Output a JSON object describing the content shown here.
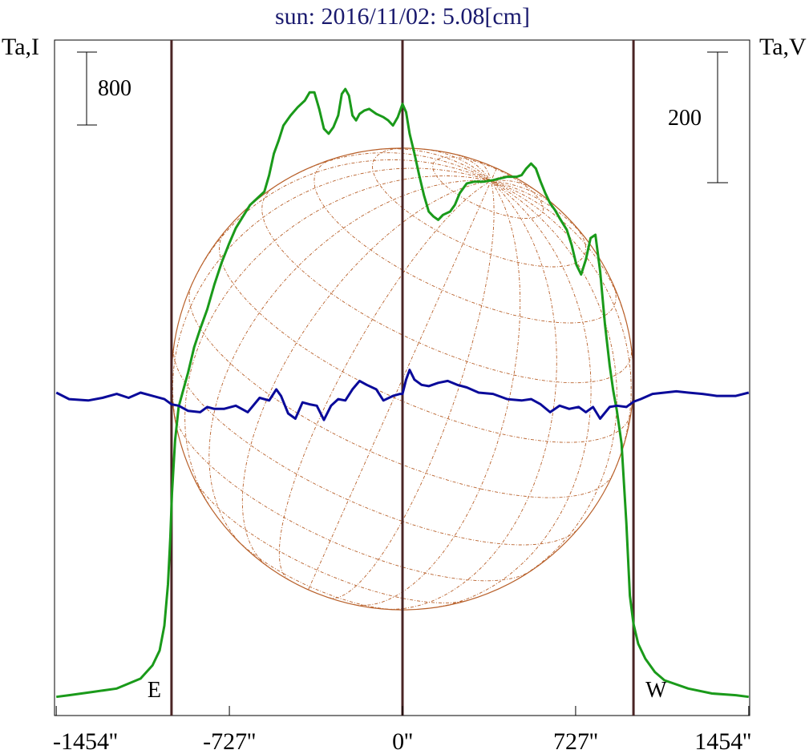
{
  "chart_data": {
    "type": "line",
    "title": "sun: 2016/11/02: 5.08[cm]",
    "left_axis_label": "Ta,I",
    "right_axis_label": "Ta,V",
    "x_unit": "arcsec",
    "xlim": [
      -1454,
      1454
    ],
    "x_ticks": [
      -1454,
      -727,
      0,
      727,
      1454
    ],
    "x_tick_labels": [
      "-1454''",
      "-727''",
      "0''",
      "727''",
      "1454''"
    ],
    "scale_bar_left": {
      "label": "800",
      "value": 800
    },
    "scale_bar_right": {
      "label": "200",
      "value": 200
    },
    "limb_markers": [
      {
        "label": "E",
        "x": -970
      },
      {
        "label": "W",
        "x": 970
      }
    ],
    "center_marker_x": 0,
    "solar_disk_radius": 970,
    "colors": {
      "intensity": "#1a9a1a",
      "polarization": "#0a0a9a",
      "markers": "#4a2424",
      "disk": "#b8602a",
      "title": "#1a1a6e"
    },
    "series": [
      {
        "name": "I",
        "axis": "left",
        "ylim": [
          0,
          3820
        ],
        "points": [
          [
            -1454,
            50
          ],
          [
            -1400,
            60
          ],
          [
            -1300,
            80
          ],
          [
            -1200,
            100
          ],
          [
            -1100,
            160
          ],
          [
            -1050,
            240
          ],
          [
            -1020,
            330
          ],
          [
            -1000,
            480
          ],
          [
            -985,
            730
          ],
          [
            -975,
            1010
          ],
          [
            -968,
            1280
          ],
          [
            -955,
            1600
          ],
          [
            -940,
            1800
          ],
          [
            -925,
            1880
          ],
          [
            -900,
            2010
          ],
          [
            -875,
            2160
          ],
          [
            -850,
            2270
          ],
          [
            -820,
            2390
          ],
          [
            -790,
            2540
          ],
          [
            -760,
            2670
          ],
          [
            -730,
            2780
          ],
          [
            -700,
            2880
          ],
          [
            -670,
            2950
          ],
          [
            -640,
            3020
          ],
          [
            -610,
            3060
          ],
          [
            -580,
            3100
          ],
          [
            -560,
            3200
          ],
          [
            -540,
            3330
          ],
          [
            -520,
            3410
          ],
          [
            -500,
            3500
          ],
          [
            -470,
            3560
          ],
          [
            -440,
            3610
          ],
          [
            -410,
            3650
          ],
          [
            -390,
            3700
          ],
          [
            -370,
            3700
          ],
          [
            -350,
            3600
          ],
          [
            -330,
            3480
          ],
          [
            -310,
            3450
          ],
          [
            -290,
            3490
          ],
          [
            -270,
            3560
          ],
          [
            -255,
            3690
          ],
          [
            -240,
            3720
          ],
          [
            -225,
            3680
          ],
          [
            -210,
            3560
          ],
          [
            -195,
            3530
          ],
          [
            -180,
            3570
          ],
          [
            -160,
            3590
          ],
          [
            -140,
            3600
          ],
          [
            -110,
            3570
          ],
          [
            -80,
            3550
          ],
          [
            -60,
            3530
          ],
          [
            -40,
            3500
          ],
          [
            -20,
            3550
          ],
          [
            0,
            3630
          ],
          [
            15,
            3580
          ],
          [
            30,
            3450
          ],
          [
            50,
            3330
          ],
          [
            70,
            3200
          ],
          [
            90,
            3080
          ],
          [
            110,
            2980
          ],
          [
            130,
            2950
          ],
          [
            150,
            2930
          ],
          [
            170,
            2960
          ],
          [
            200,
            2980
          ],
          [
            220,
            3020
          ],
          [
            240,
            3090
          ],
          [
            270,
            3150
          ],
          [
            300,
            3160
          ],
          [
            340,
            3160
          ],
          [
            380,
            3170
          ],
          [
            410,
            3180
          ],
          [
            440,
            3190
          ],
          [
            480,
            3190
          ],
          [
            500,
            3200
          ],
          [
            520,
            3240
          ],
          [
            540,
            3270
          ],
          [
            560,
            3240
          ],
          [
            580,
            3160
          ],
          [
            600,
            3090
          ],
          [
            620,
            3030
          ],
          [
            640,
            2990
          ],
          [
            660,
            2940
          ],
          [
            690,
            2870
          ],
          [
            710,
            2780
          ],
          [
            730,
            2660
          ],
          [
            750,
            2600
          ],
          [
            770,
            2690
          ],
          [
            790,
            2820
          ],
          [
            810,
            2840
          ],
          [
            830,
            2620
          ],
          [
            850,
            2300
          ],
          [
            870,
            2050
          ],
          [
            885,
            1900
          ],
          [
            900,
            1780
          ],
          [
            920,
            1580
          ],
          [
            940,
            1100
          ],
          [
            955,
            660
          ],
          [
            970,
            490
          ],
          [
            990,
            370
          ],
          [
            1020,
            280
          ],
          [
            1060,
            200
          ],
          [
            1100,
            150
          ],
          [
            1200,
            100
          ],
          [
            1300,
            70
          ],
          [
            1400,
            60
          ],
          [
            1454,
            50
          ]
        ]
      },
      {
        "name": "V",
        "axis": "right",
        "ylim": [
          -520,
          410
        ],
        "points": [
          [
            -1454,
            0
          ],
          [
            -1400,
            -10
          ],
          [
            -1320,
            -12
          ],
          [
            -1260,
            -8
          ],
          [
            -1200,
            -2
          ],
          [
            -1150,
            -8
          ],
          [
            -1100,
            0
          ],
          [
            -1050,
            -5
          ],
          [
            -1000,
            -10
          ],
          [
            -970,
            -18
          ],
          [
            -940,
            -20
          ],
          [
            -900,
            -28
          ],
          [
            -850,
            -30
          ],
          [
            -820,
            -22
          ],
          [
            -790,
            -25
          ],
          [
            -750,
            -25
          ],
          [
            -700,
            -20
          ],
          [
            -650,
            -30
          ],
          [
            -600,
            -8
          ],
          [
            -560,
            -12
          ],
          [
            -530,
            5
          ],
          [
            -510,
            -5
          ],
          [
            -480,
            -32
          ],
          [
            -450,
            -40
          ],
          [
            -420,
            -15
          ],
          [
            -390,
            -18
          ],
          [
            -360,
            -20
          ],
          [
            -330,
            -42
          ],
          [
            -300,
            -20
          ],
          [
            -270,
            -10
          ],
          [
            -240,
            -12
          ],
          [
            -210,
            5
          ],
          [
            -180,
            18
          ],
          [
            -150,
            12
          ],
          [
            -110,
            5
          ],
          [
            -80,
            -12
          ],
          [
            -40,
            -5
          ],
          [
            -10,
            -2
          ],
          [
            0,
            -2
          ],
          [
            15,
            20
          ],
          [
            30,
            35
          ],
          [
            50,
            20
          ],
          [
            80,
            12
          ],
          [
            110,
            10
          ],
          [
            150,
            15
          ],
          [
            190,
            18
          ],
          [
            230,
            12
          ],
          [
            270,
            8
          ],
          [
            320,
            0
          ],
          [
            380,
            -2
          ],
          [
            440,
            -10
          ],
          [
            500,
            -12
          ],
          [
            540,
            -10
          ],
          [
            580,
            -18
          ],
          [
            620,
            -30
          ],
          [
            660,
            -20
          ],
          [
            700,
            -25
          ],
          [
            740,
            -22
          ],
          [
            770,
            -30
          ],
          [
            800,
            -22
          ],
          [
            830,
            -40
          ],
          [
            870,
            -22
          ],
          [
            900,
            -20
          ],
          [
            940,
            -22
          ],
          [
            970,
            -14
          ],
          [
            1000,
            -10
          ],
          [
            1050,
            -2
          ],
          [
            1100,
            0
          ],
          [
            1150,
            2
          ],
          [
            1200,
            0
          ],
          [
            1260,
            -2
          ],
          [
            1320,
            -5
          ],
          [
            1400,
            -5
          ],
          [
            1454,
            0
          ]
        ]
      }
    ]
  }
}
